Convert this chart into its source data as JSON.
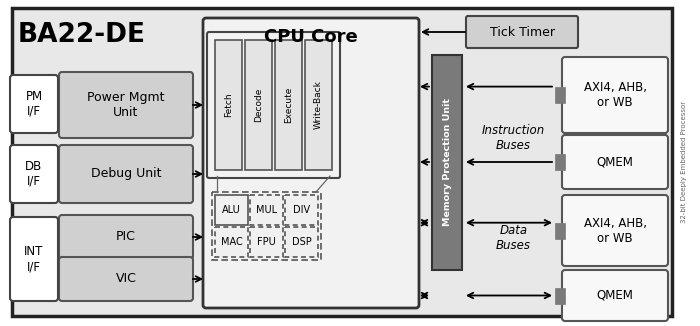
{
  "fig_w": 7.0,
  "fig_h": 3.26,
  "dpi": 100,
  "bg": "#e8e8e8",
  "white": "#ffffff",
  "light_gray": "#d0d0d0",
  "dark_gray": "#7a7a7a",
  "outer_border": "#222222",
  "box_border": "#555555",
  "title": "BA22-DE",
  "cpu_title": "CPU Core",
  "tick_timer": "Tick Timer",
  "mpu_label": "Memory Protection Unit",
  "inst_buses": "Instruction\nBuses",
  "data_buses": "Data\nBuses",
  "pm_if": "PM\nI/F",
  "db_if": "DB\nI/F",
  "int_if": "INT\nI/F",
  "power_mgmt": "Power Mgmt\nUnit",
  "debug_unit": "Debug Unit",
  "pic": "PIC",
  "vic": "VIC",
  "axi_top": "AXI4, AHB,\nor WB",
  "qmem_top": "QMEM",
  "axi_bot": "AXI4, AHB,\nor WB",
  "qmem_bot": "QMEM",
  "pipeline": [
    "Fetch",
    "Decode",
    "Execute",
    "Write-Back"
  ],
  "coprocessors": [
    [
      "ALU",
      false
    ],
    [
      "MUL",
      true
    ],
    [
      "DIV",
      true
    ],
    [
      "MAC",
      true
    ],
    [
      "FPU",
      true
    ],
    [
      "DSP",
      true
    ]
  ],
  "right_label": "32-bit Deeply Embedded Processor"
}
